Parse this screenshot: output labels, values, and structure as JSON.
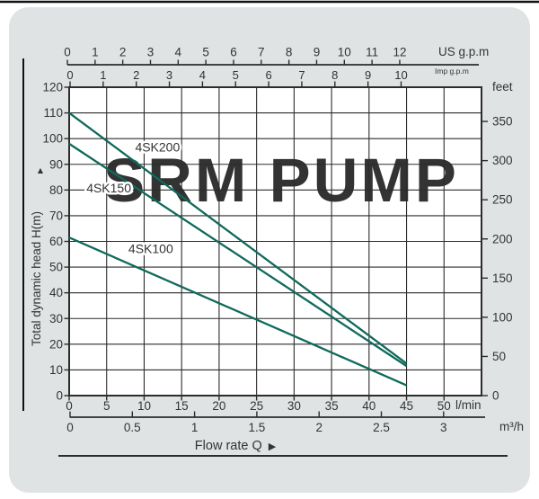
{
  "page": {
    "watermark": "SRM PUMP"
  },
  "chart_data": {
    "type": "line",
    "title": "",
    "grid": true,
    "xlabel": "Flow  rate Q",
    "xlabel_arrow": "▶",
    "x_axes": {
      "us_gpm": {
        "unit_label": "US g.p.m",
        "ticks": [
          0,
          1,
          2,
          3,
          4,
          5,
          6,
          7,
          8,
          9,
          10,
          11,
          12
        ]
      },
      "imp_gpm": {
        "unit_label": "Imp g.p.m",
        "ticks": [
          0,
          1,
          2,
          3,
          4,
          5,
          6,
          7,
          8,
          9,
          10
        ]
      },
      "lmin": {
        "unit_label": "l/min",
        "ticks": [
          0,
          5,
          10,
          15,
          20,
          25,
          30,
          35,
          40,
          45,
          50
        ],
        "grid_range": [
          0,
          55
        ]
      },
      "m3h": {
        "unit_label": "m³/h",
        "ticks": [
          "0",
          "0.5",
          "1",
          "1.5",
          "2",
          "2.5",
          "3"
        ]
      }
    },
    "y_axes": {
      "head_m": {
        "title": "Total dynamic head H(m)",
        "arrow": "▲",
        "ticks": [
          0,
          10,
          20,
          30,
          40,
          50,
          60,
          70,
          80,
          90,
          100,
          110,
          120
        ],
        "range": [
          0,
          120
        ]
      },
      "feet": {
        "unit_label": "feet",
        "ticks": [
          0,
          50,
          100,
          150,
          200,
          250,
          300,
          350
        ]
      }
    },
    "series": [
      {
        "name": "4SK200",
        "points_lmin_head_m": [
          [
            0,
            110.0
          ],
          [
            45,
            12.5
          ]
        ],
        "label_anchor_lmin_m": [
          8.8,
          95.0
        ]
      },
      {
        "name": "4SK150",
        "points_lmin_head_m": [
          [
            0,
            98.0
          ],
          [
            45,
            11.5
          ]
        ],
        "label_anchor_lmin_m": [
          2.3,
          79.0
        ]
      },
      {
        "name": "4SK100",
        "points_lmin_head_m": [
          [
            0,
            61.5
          ],
          [
            45,
            4.0
          ]
        ],
        "label_anchor_lmin_m": [
          7.9,
          55.5
        ]
      }
    ]
  },
  "colors": {
    "curve": "#0f6a5b",
    "grid": "#2c2c2c",
    "text": "#333333",
    "watermark": "#b7c8e3",
    "panel_bg": "#e0e3e4",
    "plot_bg": "#ffffff",
    "rule": "#111111"
  }
}
